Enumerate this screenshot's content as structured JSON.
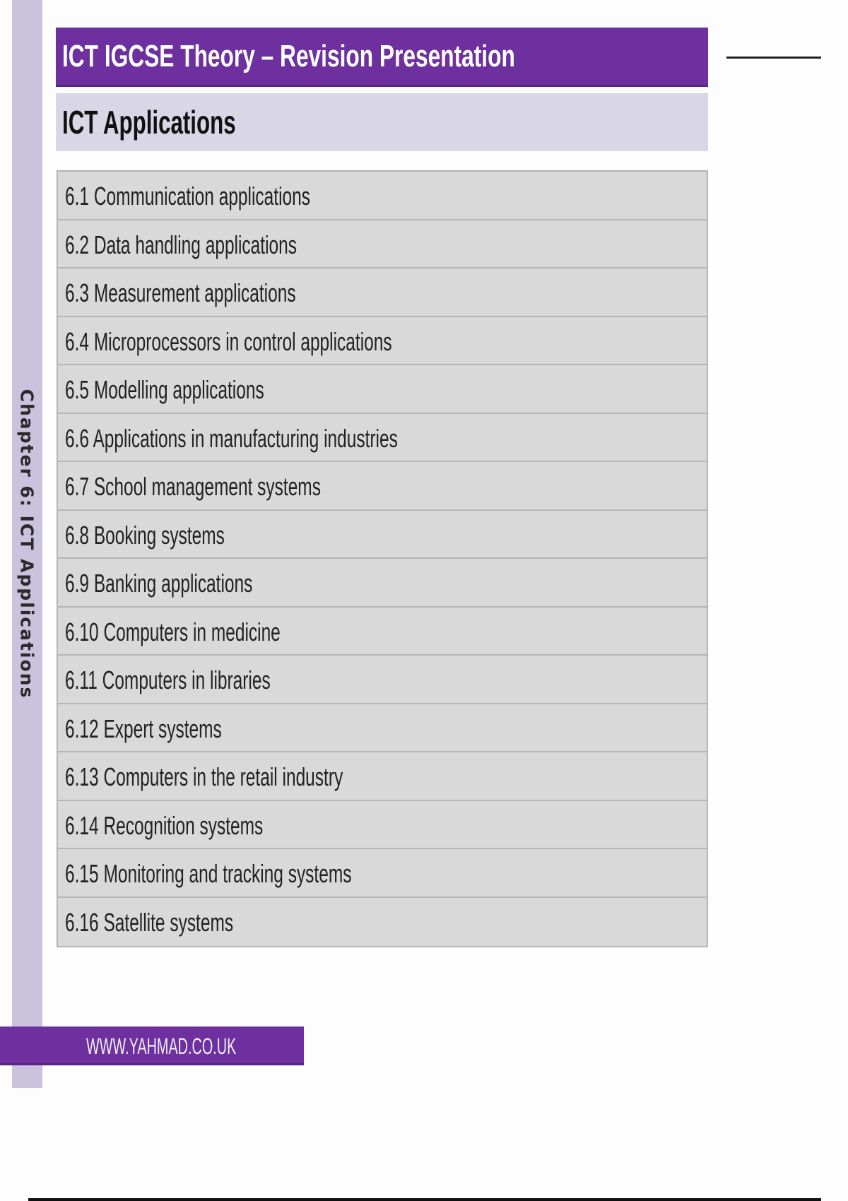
{
  "sidebar": {
    "chapter_label": "Chapter 6: ICT Applications"
  },
  "header": {
    "title": "ICT IGCSE Theory – Revision Presentation",
    "subtitle": "ICT Applications"
  },
  "topics": [
    "6.1 Communication applications",
    "6.2 Data handling applications",
    "6.3 Measurement applications",
    "6.4 Microprocessors in control applications",
    "6.5 Modelling applications",
    "6.6 Applications in manufacturing industries",
    "6.7 School management systems",
    "6.8 Booking systems",
    "6.9 Banking applications",
    "6.10 Computers in medicine",
    "6.11 Computers in libraries",
    "6.12 Expert systems",
    "6.13 Computers in the retail industry",
    "6.14 Recognition systems",
    "6.15 Monitoring and tracking systems",
    "6.16 Satellite systems"
  ],
  "footer": {
    "website": "WWW.YAHMAD.CO.UK"
  },
  "colors": {
    "accent": "#6e2f9f",
    "sidebar": "#cbc3dd",
    "subtitle_bg": "#d9d6e5",
    "row_bg": "#d9d9d9"
  }
}
